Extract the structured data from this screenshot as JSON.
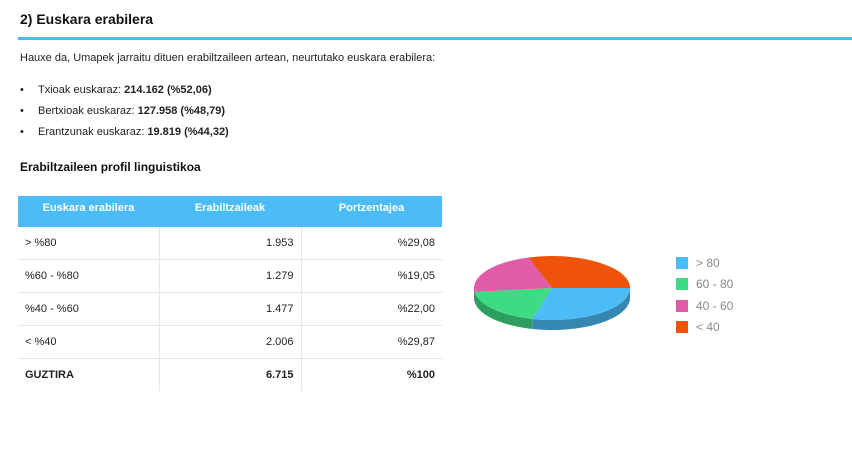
{
  "section": {
    "heading": "2) Euskara erabilera",
    "intro": "Hauxe da, Umapek jarraitu dituen erabiltzaileen artean, neurtutako euskara erabilera:",
    "bullets": [
      {
        "label": "Txioak euskaraz: ",
        "value": "214.162 (%52,06)"
      },
      {
        "label": "Bertxioak euskaraz: ",
        "value": "127.958 (%48,79)"
      },
      {
        "label": "Erantzunak euskaraz: ",
        "value": "19.819 (%44,32)"
      }
    ],
    "bullet_char": "•"
  },
  "profile": {
    "title": "Erabiltzaileen profil linguistikoa",
    "headers": [
      "Euskara erabilera",
      "Erabiltzaileak",
      "Portzentajea"
    ],
    "rows": [
      [
        "> %80",
        "1.953",
        "%29,08"
      ],
      [
        "%60 - %80",
        "1.279",
        "%19,05"
      ],
      [
        "%40 - %60",
        "1.477",
        "%22,00"
      ],
      [
        "< %40",
        "2.006",
        "%29,87"
      ]
    ],
    "total": [
      "GUZTIRA",
      "6.715",
      "%100"
    ]
  },
  "chart_data": {
    "type": "pie",
    "labels": [
      "> 80",
      "60 - 80",
      "40 - 60",
      "< 40"
    ],
    "values": [
      29.08,
      19.05,
      22.0,
      29.87
    ],
    "colors": [
      "#4bbcf5",
      "#3ddc84",
      "#e05ca8",
      "#ef5209"
    ],
    "legend_position": "right",
    "three_d": true
  },
  "colors": {
    "accent": "#4bbcf5"
  }
}
